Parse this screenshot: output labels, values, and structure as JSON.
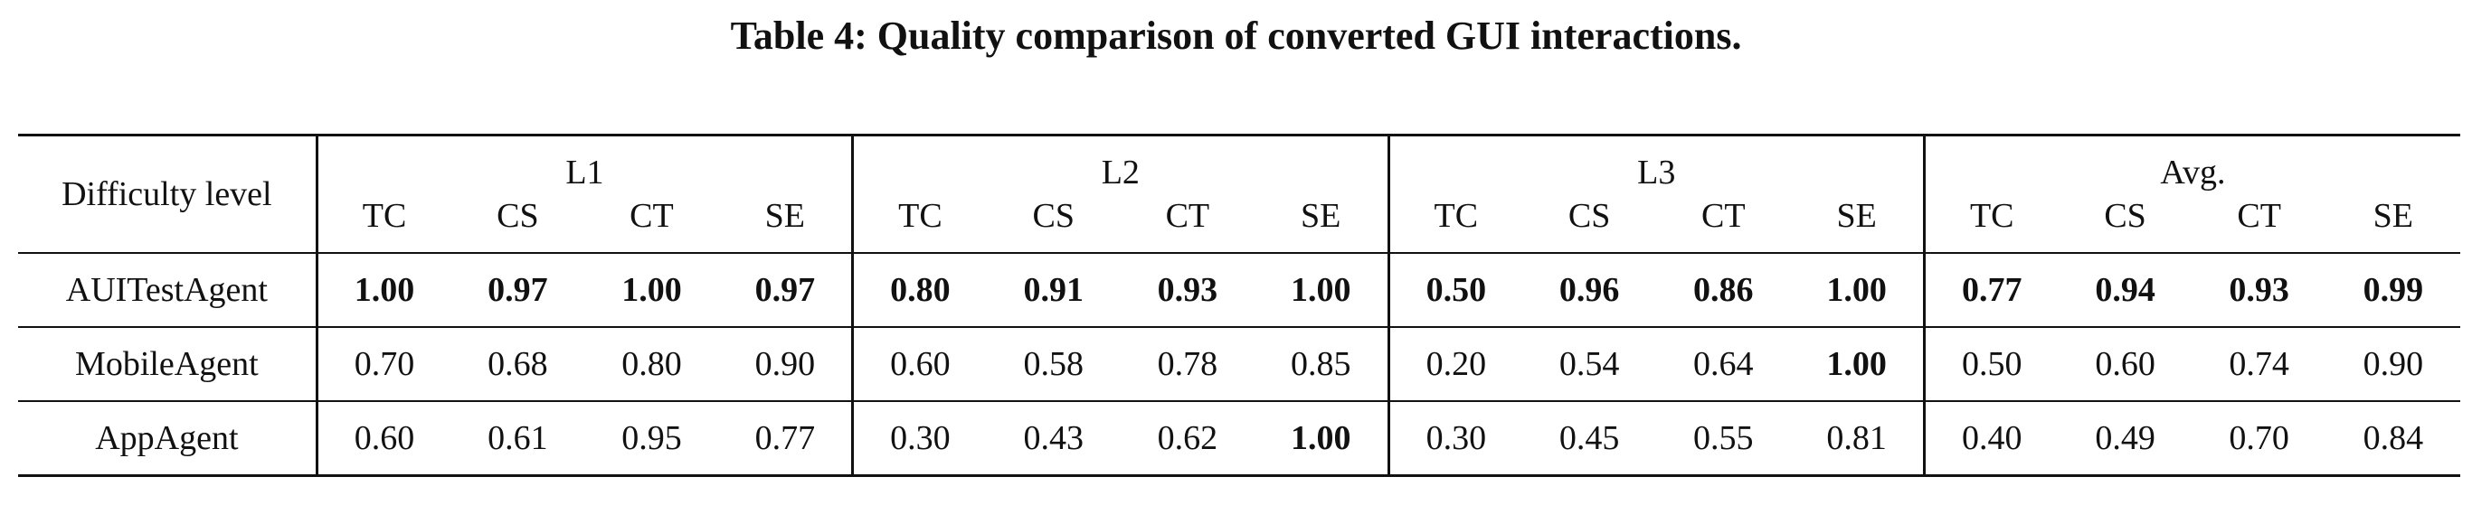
{
  "caption": "Table 4: Quality comparison of converted GUI interactions.",
  "table": {
    "row_header": "Difficulty level",
    "groups": [
      "L1",
      "L2",
      "L3",
      "Avg."
    ],
    "metrics": [
      "TC",
      "CS",
      "CT",
      "SE"
    ],
    "rows": [
      {
        "name": "AUITestAgent",
        "values": [
          "1.00",
          "0.97",
          "1.00",
          "0.97",
          "0.80",
          "0.91",
          "0.93",
          "1.00",
          "0.50",
          "0.96",
          "0.86",
          "1.00",
          "0.77",
          "0.94",
          "0.93",
          "0.99"
        ],
        "bold": [
          true,
          true,
          true,
          true,
          true,
          true,
          true,
          true,
          true,
          true,
          true,
          true,
          true,
          true,
          true,
          true
        ]
      },
      {
        "name": "MobileAgent",
        "values": [
          "0.70",
          "0.68",
          "0.80",
          "0.90",
          "0.60",
          "0.58",
          "0.78",
          "0.85",
          "0.20",
          "0.54",
          "0.64",
          "1.00",
          "0.50",
          "0.60",
          "0.74",
          "0.90"
        ],
        "bold": [
          false,
          false,
          false,
          false,
          false,
          false,
          false,
          false,
          false,
          false,
          false,
          true,
          false,
          false,
          false,
          false
        ]
      },
      {
        "name": "AppAgent",
        "values": [
          "0.60",
          "0.61",
          "0.95",
          "0.77",
          "0.30",
          "0.43",
          "0.62",
          "1.00",
          "0.30",
          "0.45",
          "0.55",
          "0.81",
          "0.40",
          "0.49",
          "0.70",
          "0.84"
        ],
        "bold": [
          false,
          false,
          false,
          false,
          false,
          false,
          false,
          true,
          false,
          false,
          false,
          false,
          false,
          false,
          false,
          false
        ]
      }
    ]
  }
}
